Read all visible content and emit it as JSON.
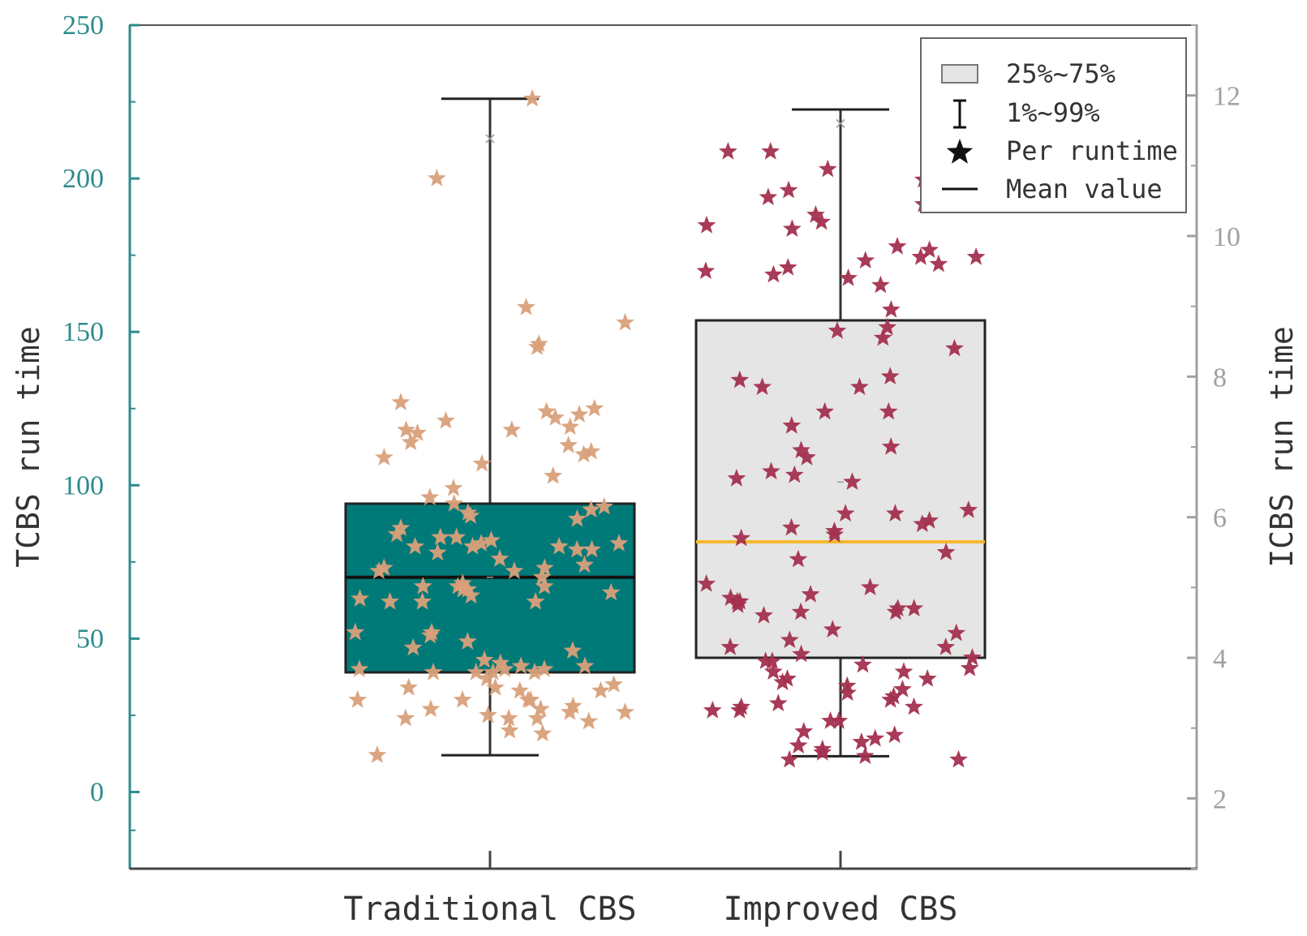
{
  "chart_data": {
    "type": "box",
    "left_axis": {
      "label": "TCBS run time",
      "ylim": [
        -25,
        250
      ],
      "ticks": [
        0,
        50,
        100,
        150,
        200,
        250
      ],
      "color": "#2e8b8b"
    },
    "right_axis": {
      "label": "ICBS run time",
      "ylim": [
        1,
        13
      ],
      "ticks": [
        2,
        4,
        6,
        8,
        10,
        12
      ],
      "color": "#a0a0a0"
    },
    "categories": [
      "Traditional CBS",
      "Improved CBS"
    ],
    "series": [
      {
        "name": "Traditional CBS",
        "axis": "left",
        "q1": 39,
        "q3": 94,
        "median": 70,
        "whisker_low": 12,
        "whisker_high": 226,
        "mean": 70,
        "extreme_marker": 213,
        "box_color": "#007a78",
        "median_color": "#111111",
        "point_color": "#d9a07a",
        "points": [
          226,
          200,
          158,
          153,
          146,
          145,
          127,
          125,
          124,
          123,
          122,
          121,
          119,
          118,
          118,
          117,
          114,
          113,
          111,
          110,
          109,
          107,
          103,
          99,
          96,
          94,
          93,
          92,
          91,
          90,
          89,
          86,
          84,
          83,
          83,
          82,
          81,
          81,
          80,
          80,
          80,
          79,
          79,
          78,
          76,
          74,
          73,
          73,
          72,
          72,
          70,
          68,
          67,
          67,
          67,
          66,
          66,
          65,
          64,
          63,
          62,
          62,
          62,
          52,
          52,
          51,
          49,
          47,
          46,
          43,
          42,
          41,
          41,
          40,
          40,
          40,
          39,
          39,
          39,
          39,
          37,
          35,
          34,
          34,
          33,
          33,
          30,
          30,
          30,
          30,
          28,
          27,
          27,
          26,
          26,
          25,
          24,
          24,
          24,
          23,
          20,
          19,
          12
        ]
      },
      {
        "name": "Improved CBS",
        "axis": "right",
        "q1": 4.0,
        "q3": 8.8,
        "median": 5.65,
        "whisker_low": 2.6,
        "whisker_high": 11.8,
        "mean": 6.5,
        "extreme_marker": 11.6,
        "box_color": "#e5e5e5",
        "median_color": "#f5b82e",
        "point_color": "#a3304f",
        "points": [
          11.85,
          11.2,
          11.2,
          10.95,
          10.8,
          10.65,
          10.65,
          10.55,
          10.45,
          10.3,
          10.2,
          10.15,
          10.1,
          9.85,
          9.8,
          9.7,
          9.7,
          9.65,
          9.6,
          9.55,
          9.5,
          9.45,
          9.4,
          9.3,
          8.95,
          8.7,
          8.65,
          8.55,
          8.4,
          8.0,
          7.95,
          7.85,
          7.85,
          7.5,
          7.5,
          7.3,
          7.0,
          6.95,
          6.85,
          6.65,
          6.6,
          6.55,
          6.5,
          6.1,
          6.05,
          6.05,
          5.95,
          5.9,
          5.85,
          5.8,
          5.75,
          5.7,
          5.5,
          5.4,
          5.05,
          5.0,
          4.9,
          4.85,
          4.8,
          4.8,
          4.75,
          4.7,
          4.7,
          4.65,
          4.65,
          4.6,
          4.4,
          4.35,
          4.25,
          4.15,
          4.15,
          4.05,
          4.0,
          3.95,
          3.95,
          3.9,
          3.85,
          3.8,
          3.8,
          3.7,
          3.7,
          3.65,
          3.6,
          3.55,
          3.5,
          3.45,
          3.4,
          3.35,
          3.3,
          3.3,
          3.25,
          3.25,
          3.1,
          3.1,
          2.95,
          2.9,
          2.85,
          2.8,
          2.75,
          2.7,
          2.65,
          2.6,
          2.55,
          2.55
        ]
      }
    ],
    "legend": {
      "position": "top-right",
      "items": [
        "25%~75%",
        "1%~99%",
        "Per runtime",
        "Mean value"
      ]
    }
  }
}
